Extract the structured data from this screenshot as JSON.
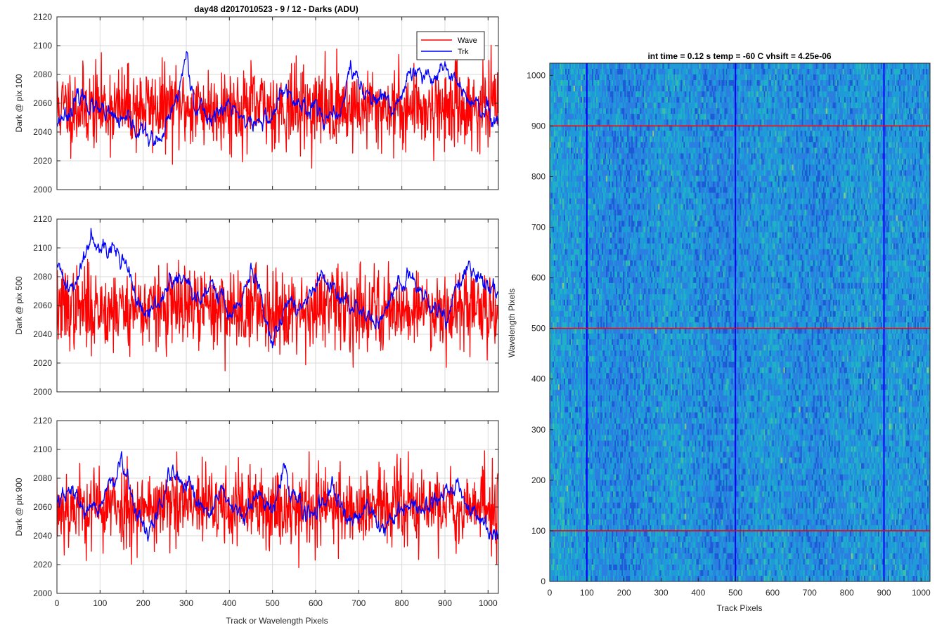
{
  "figure": {
    "suptitle": "day48 d2017010523 - 9 / 12 - Darks (ADU)",
    "shared_xlabel": "Track or Wavelength Pixels"
  },
  "colors": {
    "wave": "#ff0000",
    "trk": "#0000ff",
    "axis": "#262626",
    "grid": "#d9d9d9"
  },
  "chart_data": [
    {
      "type": "line",
      "ylabel": "Dark @ pix 100",
      "xlim": [
        0,
        1024
      ],
      "ylim": [
        2000,
        2120
      ],
      "xticks": [
        0,
        100,
        200,
        300,
        400,
        500,
        600,
        700,
        800,
        900,
        1000
      ],
      "yticks": [
        2000,
        2020,
        2040,
        2060,
        2080,
        2100,
        2120
      ],
      "grid": true,
      "legend": {
        "position": "top-right",
        "entries": [
          "Wave",
          "Trk"
        ]
      },
      "series": [
        {
          "name": "Wave",
          "mean": 2057,
          "noise": 14,
          "smooth": 0.0,
          "seed": 11,
          "anchors_x": [
            0,
            1024
          ],
          "anchors_y": [
            2057,
            2057
          ]
        },
        {
          "name": "Trk",
          "mean": 2052,
          "noise": 5,
          "smooth": 0.8,
          "seed": 23,
          "anchors_x": [
            0,
            60,
            100,
            140,
            200,
            240,
            280,
            300,
            320,
            350,
            400,
            450,
            500,
            520,
            560,
            600,
            650,
            680,
            720,
            780,
            820,
            860,
            900,
            950,
            1000,
            1024
          ],
          "anchors_y": [
            2048,
            2065,
            2052,
            2048,
            2040,
            2030,
            2065,
            2095,
            2060,
            2050,
            2058,
            2045,
            2050,
            2068,
            2060,
            2058,
            2045,
            2085,
            2065,
            2055,
            2080,
            2075,
            2088,
            2062,
            2052,
            2040
          ]
        }
      ]
    },
    {
      "type": "line",
      "ylabel": "Dark @ pix 500",
      "xlim": [
        0,
        1024
      ],
      "ylim": [
        2000,
        2120
      ],
      "xticks": [
        0,
        100,
        200,
        300,
        400,
        500,
        600,
        700,
        800,
        900,
        1000
      ],
      "yticks": [
        2000,
        2020,
        2040,
        2060,
        2080,
        2100,
        2120
      ],
      "grid": true,
      "series": [
        {
          "name": "Wave",
          "mean": 2058,
          "noise": 14,
          "smooth": 0.0,
          "seed": 37,
          "anchors_x": [
            0,
            1024
          ],
          "anchors_y": [
            2058,
            2058
          ]
        },
        {
          "name": "Trk",
          "mean": 2065,
          "noise": 5,
          "smooth": 0.8,
          "seed": 41,
          "anchors_x": [
            0,
            40,
            80,
            120,
            160,
            200,
            230,
            260,
            300,
            330,
            360,
            400,
            430,
            450,
            500,
            540,
            580,
            610,
            650,
            700,
            740,
            780,
            820,
            860,
            900,
            950,
            1000,
            1024
          ],
          "anchors_y": [
            2085,
            2070,
            2112,
            2100,
            2090,
            2050,
            2060,
            2075,
            2078,
            2058,
            2080,
            2055,
            2060,
            2085,
            2040,
            2062,
            2060,
            2080,
            2065,
            2060,
            2045,
            2070,
            2080,
            2060,
            2050,
            2085,
            2075,
            2070
          ]
        }
      ]
    },
    {
      "type": "line",
      "ylabel": "Dark @ pix 900",
      "xlim": [
        0,
        1024
      ],
      "ylim": [
        2000,
        2120
      ],
      "xticks": [
        0,
        100,
        200,
        300,
        400,
        500,
        600,
        700,
        800,
        900,
        1000
      ],
      "yticks": [
        2000,
        2020,
        2040,
        2060,
        2080,
        2100,
        2120
      ],
      "grid": true,
      "series": [
        {
          "name": "Wave",
          "mean": 2060,
          "noise": 14,
          "smooth": 0.0,
          "seed": 53,
          "anchors_x": [
            0,
            1024
          ],
          "anchors_y": [
            2060,
            2060
          ]
        },
        {
          "name": "Trk",
          "mean": 2058,
          "noise": 5,
          "smooth": 0.8,
          "seed": 67,
          "anchors_x": [
            0,
            40,
            80,
            120,
            150,
            180,
            210,
            240,
            260,
            300,
            340,
            380,
            420,
            460,
            500,
            520,
            560,
            600,
            640,
            680,
            720,
            760,
            800,
            840,
            880,
            920,
            960,
            1000,
            1024
          ],
          "anchors_y": [
            2065,
            2070,
            2050,
            2075,
            2088,
            2060,
            2040,
            2060,
            2080,
            2072,
            2055,
            2070,
            2050,
            2065,
            2060,
            2085,
            2062,
            2055,
            2068,
            2050,
            2062,
            2045,
            2060,
            2058,
            2065,
            2075,
            2060,
            2045,
            2038
          ]
        }
      ]
    },
    {
      "type": "heatmap",
      "title": "int time = 0.12 s    temp = -60 C    vhsift = 4.25e-06",
      "xlabel": "Track Pixels",
      "ylabel": "Wavelength Pixels",
      "xlim": [
        0,
        1024
      ],
      "ylim": [
        0,
        1024
      ],
      "xticks": [
        0,
        100,
        200,
        300,
        400,
        500,
        600,
        700,
        800,
        900,
        1000
      ],
      "yticks": [
        0,
        100,
        200,
        300,
        400,
        500,
        600,
        700,
        800,
        900,
        1000
      ],
      "colormap": [
        "#1d5bd6",
        "#2a7fe0",
        "#1f9bd8",
        "#20b0c8",
        "#3cbfa8",
        "#8cc97e"
      ],
      "vertical_lines": {
        "x": [
          100,
          500,
          900
        ],
        "color": "#0000ff"
      },
      "horizontal_lines": {
        "y": [
          100,
          500,
          900
        ],
        "color": "#ff0000"
      }
    }
  ]
}
